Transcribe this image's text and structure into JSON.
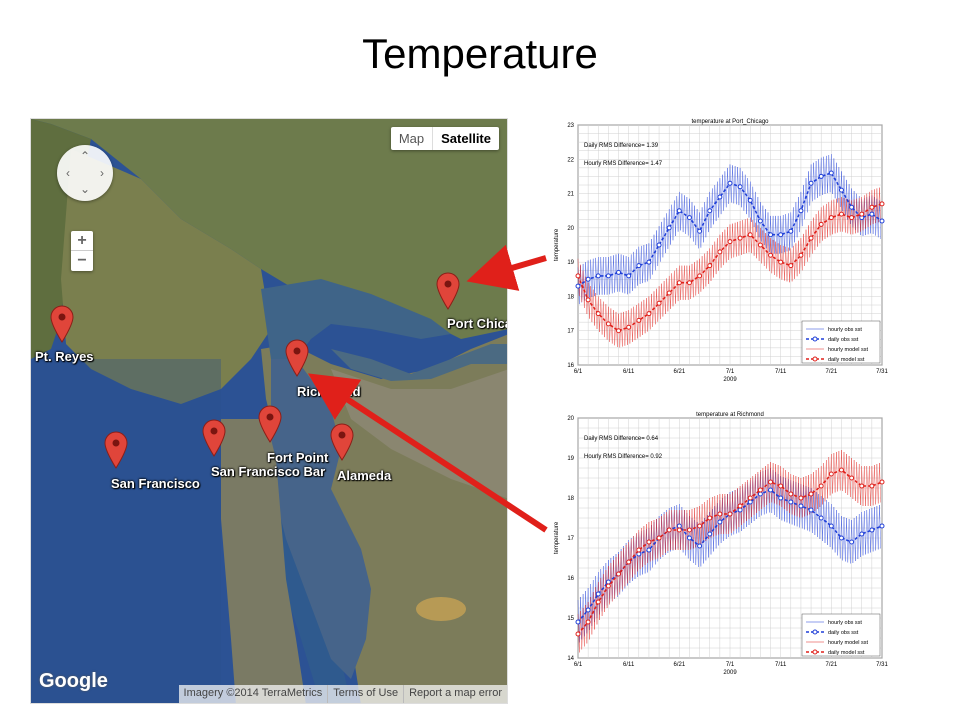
{
  "slide": {
    "title": "Temperature"
  },
  "map": {
    "type_buttons": {
      "map": "Map",
      "satellite": "Satellite"
    },
    "zoom": {
      "in": "+",
      "out": "−"
    },
    "logo": "Google",
    "attribution": [
      "Imagery ©2014 TerraMetrics",
      "Terms of Use",
      "Report a map error"
    ],
    "markers": [
      {
        "label": "Pt. Reyes",
        "icon": "map-pin-icon"
      },
      {
        "label": "San Francisco",
        "icon": "map-pin-icon"
      },
      {
        "label": "San Francisco Bar",
        "icon": "map-pin-icon"
      },
      {
        "label": "Fort Point",
        "icon": "map-pin-icon"
      },
      {
        "label": "Alameda",
        "icon": "map-pin-icon"
      },
      {
        "label": "Richmond",
        "icon": "map-pin-icon"
      },
      {
        "label": "Port Chica",
        "icon": "map-pin-icon"
      }
    ],
    "colors": {
      "water": "#2a4f8d",
      "land": "#6b7a4a",
      "pin": "#e0453a",
      "arrow": "#e0201a"
    }
  },
  "chart_data": [
    {
      "type": "line",
      "title": "temperature at Port_Chicago",
      "xlabel": "2009",
      "ylabel": "temperature",
      "x_ticks": [
        "6/1",
        "6/11",
        "6/21",
        "7/1",
        "7/11",
        "7/21",
        "7/31"
      ],
      "ylim": [
        16,
        23
      ],
      "y_ticks": [
        16,
        17,
        18,
        19,
        20,
        21,
        22,
        23
      ],
      "annotations": [
        "Daily RMS Difference= 1.39",
        "Hourly RMS Difference= 1.47"
      ],
      "legend": [
        "hourly obs sst",
        "daily obs sst",
        "hourly model sst",
        "daily model sst"
      ],
      "legend_position": "bottom-right",
      "grid": true,
      "series": [
        {
          "name": "daily obs sst",
          "color": "#1f3fd8",
          "x": [
            "6/1",
            "6/3",
            "6/5",
            "6/7",
            "6/9",
            "6/11",
            "6/13",
            "6/15",
            "6/17",
            "6/19",
            "6/21",
            "6/23",
            "6/25",
            "6/27",
            "6/29",
            "7/1",
            "7/3",
            "7/5",
            "7/7",
            "7/9",
            "7/11",
            "7/13",
            "7/15",
            "7/17",
            "7/19",
            "7/21",
            "7/23",
            "7/25",
            "7/27",
            "7/29",
            "7/31"
          ],
          "values": [
            18.3,
            18.5,
            18.6,
            18.6,
            18.7,
            18.6,
            18.9,
            19.0,
            19.5,
            20.0,
            20.5,
            20.3,
            19.9,
            20.5,
            20.9,
            21.3,
            21.2,
            20.8,
            20.2,
            19.8,
            19.8,
            19.9,
            20.5,
            21.3,
            21.5,
            21.6,
            21.1,
            20.6,
            20.3,
            20.4,
            20.2
          ]
        },
        {
          "name": "daily model sst",
          "color": "#e0201a",
          "x": [
            "6/1",
            "6/3",
            "6/5",
            "6/7",
            "6/9",
            "6/11",
            "6/13",
            "6/15",
            "6/17",
            "6/19",
            "6/21",
            "6/23",
            "6/25",
            "6/27",
            "6/29",
            "7/1",
            "7/3",
            "7/5",
            "7/7",
            "7/9",
            "7/11",
            "7/13",
            "7/15",
            "7/17",
            "7/19",
            "7/21",
            "7/23",
            "7/25",
            "7/27",
            "7/29",
            "7/31"
          ],
          "values": [
            18.6,
            17.9,
            17.5,
            17.2,
            17.0,
            17.1,
            17.3,
            17.5,
            17.8,
            18.1,
            18.4,
            18.4,
            18.6,
            18.9,
            19.3,
            19.6,
            19.7,
            19.8,
            19.5,
            19.2,
            19.0,
            18.9,
            19.2,
            19.7,
            20.1,
            20.3,
            20.4,
            20.3,
            20.4,
            20.6,
            20.7
          ]
        }
      ]
    },
    {
      "type": "line",
      "title": "temperature at Richmond",
      "xlabel": "2009",
      "ylabel": "temperature",
      "x_ticks": [
        "6/1",
        "6/11",
        "6/21",
        "7/1",
        "7/11",
        "7/21",
        "7/31"
      ],
      "ylim": [
        14,
        20
      ],
      "y_ticks": [
        14,
        15,
        16,
        17,
        18,
        19,
        20
      ],
      "annotations": [
        "Daily RMS Difference= 0.64",
        "Hourly RMS Difference= 0.92"
      ],
      "legend": [
        "hourly obs sst",
        "daily obs sst",
        "hourly model sst",
        "daily model sst"
      ],
      "legend_position": "bottom-right",
      "grid": true,
      "series": [
        {
          "name": "daily obs sst",
          "color": "#1f3fd8",
          "x": [
            "6/1",
            "6/3",
            "6/5",
            "6/7",
            "6/9",
            "6/11",
            "6/13",
            "6/15",
            "6/17",
            "6/19",
            "6/21",
            "6/23",
            "6/25",
            "6/27",
            "6/29",
            "7/1",
            "7/3",
            "7/5",
            "7/7",
            "7/9",
            "7/11",
            "7/13",
            "7/15",
            "7/17",
            "7/19",
            "7/21",
            "7/23",
            "7/25",
            "7/27",
            "7/29",
            "7/31"
          ],
          "values": [
            14.9,
            15.2,
            15.6,
            15.9,
            16.1,
            16.4,
            16.6,
            16.7,
            17.0,
            17.2,
            17.3,
            17.0,
            16.8,
            17.1,
            17.4,
            17.6,
            17.7,
            17.9,
            18.1,
            18.2,
            18.0,
            17.9,
            17.8,
            17.7,
            17.5,
            17.3,
            17.0,
            16.9,
            17.1,
            17.2,
            17.3
          ]
        },
        {
          "name": "daily model sst",
          "color": "#e0201a",
          "x": [
            "6/1",
            "6/3",
            "6/5",
            "6/7",
            "6/9",
            "6/11",
            "6/13",
            "6/15",
            "6/17",
            "6/19",
            "6/21",
            "6/23",
            "6/25",
            "6/27",
            "6/29",
            "7/1",
            "7/3",
            "7/5",
            "7/7",
            "7/9",
            "7/11",
            "7/13",
            "7/15",
            "7/17",
            "7/19",
            "7/21",
            "7/23",
            "7/25",
            "7/27",
            "7/29",
            "7/31"
          ],
          "values": [
            14.6,
            14.9,
            15.4,
            15.8,
            16.1,
            16.4,
            16.7,
            16.9,
            17.0,
            17.2,
            17.2,
            17.2,
            17.3,
            17.5,
            17.6,
            17.6,
            17.8,
            18.0,
            18.2,
            18.4,
            18.3,
            18.1,
            18.0,
            18.1,
            18.3,
            18.6,
            18.7,
            18.5,
            18.3,
            18.3,
            18.4
          ]
        }
      ]
    }
  ]
}
